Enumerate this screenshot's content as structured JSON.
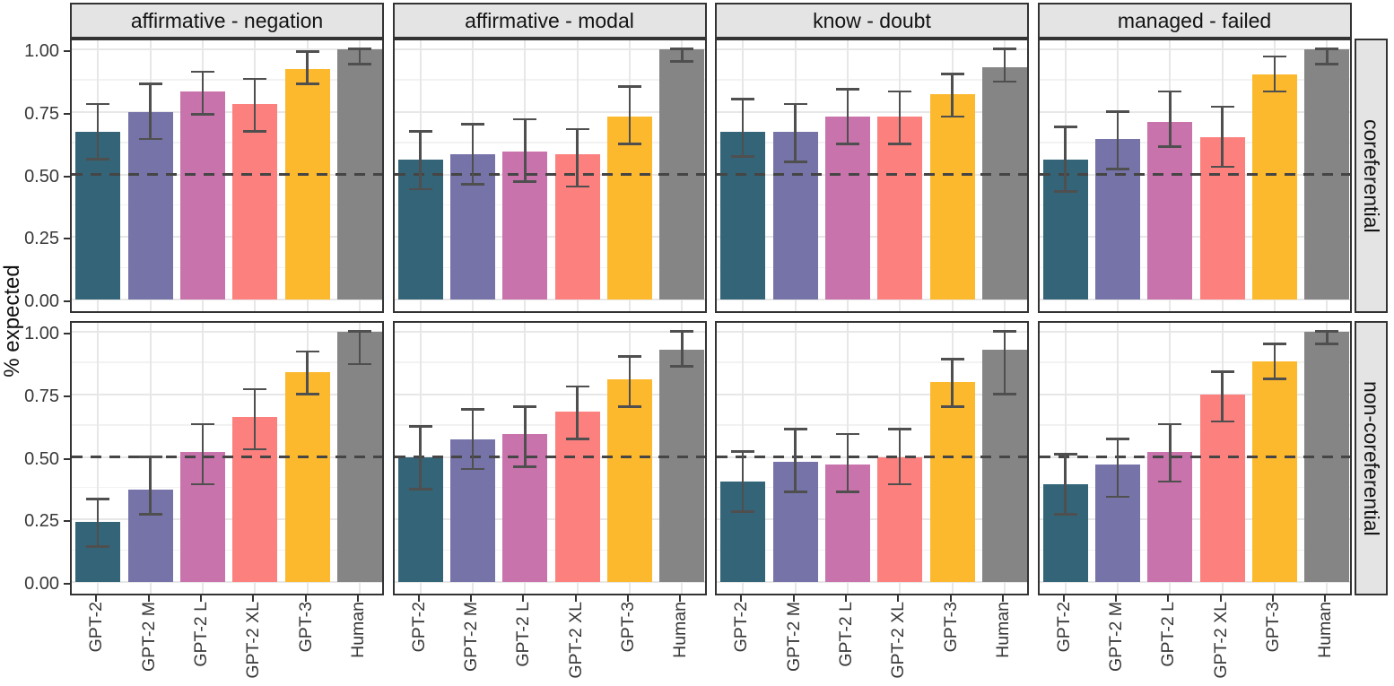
{
  "chart_data": {
    "type": "bar",
    "title": "",
    "ylabel": "% expected",
    "xlabel": "",
    "legend": "none",
    "grid": true,
    "ylim": [
      0,
      1.05
    ],
    "yticks": [
      0.0,
      0.25,
      0.5,
      0.75,
      1.0
    ],
    "ytick_labels": [
      "0.00",
      "0.25",
      "0.50",
      "0.75",
      "1.00"
    ],
    "yminor_ticks": [
      0.125,
      0.375,
      0.625,
      0.875
    ],
    "reference_line_y": 0.5,
    "categories": [
      "GPT-2",
      "GPT-2 M",
      "GPT-2 L",
      "GPT-2 XL",
      "GPT-3",
      "Human"
    ],
    "series_colors": [
      "#336478",
      "#7673a9",
      "#c973ac",
      "#fc807e",
      "#fcb92d",
      "#858585"
    ],
    "facet_col_labels": [
      "affirmative - negation",
      "affirmative - modal",
      "know - doubt",
      "managed - failed"
    ],
    "facet_row_labels": [
      "coreferential",
      "non-coreferential"
    ],
    "panels": [
      {
        "facet_row": "coreferential",
        "facet_col": "affirmative - negation",
        "values": [
          0.67,
          0.75,
          0.83,
          0.78,
          0.92,
          1.0
        ],
        "err_low": [
          0.56,
          0.64,
          0.74,
          0.67,
          0.86,
          0.94
        ],
        "err_high": [
          0.78,
          0.86,
          0.91,
          0.88,
          0.99,
          1.0
        ]
      },
      {
        "facet_row": "coreferential",
        "facet_col": "affirmative - modal",
        "values": [
          0.56,
          0.58,
          0.59,
          0.58,
          0.73,
          1.0
        ],
        "err_low": [
          0.44,
          0.46,
          0.47,
          0.45,
          0.62,
          0.95
        ],
        "err_high": [
          0.67,
          0.7,
          0.72,
          0.68,
          0.85,
          1.0
        ]
      },
      {
        "facet_row": "coreferential",
        "facet_col": "know - doubt",
        "values": [
          0.67,
          0.67,
          0.73,
          0.73,
          0.82,
          0.93
        ],
        "err_low": [
          0.57,
          0.55,
          0.62,
          0.62,
          0.73,
          0.87
        ],
        "err_high": [
          0.8,
          0.78,
          0.84,
          0.83,
          0.9,
          1.0
        ]
      },
      {
        "facet_row": "coreferential",
        "facet_col": "managed - failed",
        "values": [
          0.56,
          0.64,
          0.71,
          0.65,
          0.9,
          1.0
        ],
        "err_low": [
          0.43,
          0.52,
          0.61,
          0.53,
          0.83,
          0.94
        ],
        "err_high": [
          0.69,
          0.75,
          0.83,
          0.77,
          0.97,
          1.0
        ]
      },
      {
        "facet_row": "non-coreferential",
        "facet_col": "affirmative - negation",
        "values": [
          0.24,
          0.37,
          0.52,
          0.66,
          0.84,
          1.0
        ],
        "err_low": [
          0.14,
          0.27,
          0.39,
          0.53,
          0.75,
          0.87
        ],
        "err_high": [
          0.33,
          0.5,
          0.63,
          0.77,
          0.92,
          1.0
        ]
      },
      {
        "facet_row": "non-coreferential",
        "facet_col": "affirmative - modal",
        "values": [
          0.5,
          0.57,
          0.59,
          0.68,
          0.81,
          0.93
        ],
        "err_low": [
          0.37,
          0.45,
          0.46,
          0.57,
          0.7,
          0.86
        ],
        "err_high": [
          0.62,
          0.69,
          0.7,
          0.78,
          0.9,
          1.0
        ]
      },
      {
        "facet_row": "non-coreferential",
        "facet_col": "know - doubt",
        "values": [
          0.4,
          0.48,
          0.47,
          0.5,
          0.8,
          0.93
        ],
        "err_low": [
          0.28,
          0.36,
          0.36,
          0.39,
          0.7,
          0.75
        ],
        "err_high": [
          0.52,
          0.61,
          0.59,
          0.61,
          0.89,
          1.0
        ]
      },
      {
        "facet_row": "non-coreferential",
        "facet_col": "managed - failed",
        "values": [
          0.39,
          0.47,
          0.52,
          0.75,
          0.88,
          1.0
        ],
        "err_low": [
          0.27,
          0.34,
          0.4,
          0.64,
          0.81,
          0.95
        ],
        "err_high": [
          0.51,
          0.57,
          0.63,
          0.84,
          0.95,
          1.0
        ]
      }
    ]
  },
  "colors": {
    "strip_bg": "#e4e4e4",
    "panel_border": "#333333",
    "grid_major": "#e7e7e7",
    "grid_minor": "#f2f2f2",
    "errorbar": "#4f4f4f",
    "reference_line": "#454545",
    "tick_text": "#383838",
    "strip_text": "#141414",
    "axis_title_text": "#111111"
  }
}
